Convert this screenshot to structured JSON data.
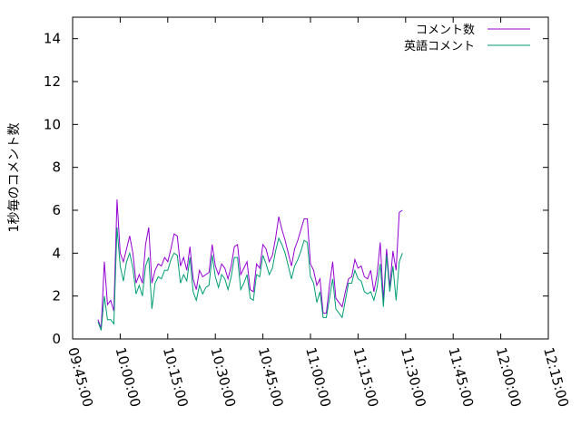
{
  "chart_data": {
    "type": "line",
    "title": "",
    "xlabel": "",
    "ylabel": "1秒毎のコメント数",
    "x_ticks": [
      "09:45:00",
      "10:00:00",
      "10:15:00",
      "10:30:00",
      "10:45:00",
      "11:00:00",
      "11:15:00",
      "11:30:00",
      "11:45:00",
      "12:00:00",
      "12:15:00"
    ],
    "y_ticks": [
      "0",
      "2",
      "4",
      "6",
      "8",
      "10",
      "12",
      "14"
    ],
    "ylim": [
      0,
      15
    ],
    "xlim": [
      "09:45:00",
      "12:15:00"
    ],
    "grid": false,
    "legend_position": "top-right",
    "series": [
      {
        "name": "コメント数",
        "color": "#9400d3",
        "points": [
          [
            "09:53:00",
            0.9
          ],
          [
            "09:54:00",
            0.5
          ],
          [
            "09:55:00",
            3.6
          ],
          [
            "09:56:00",
            1.6
          ],
          [
            "09:57:00",
            1.8
          ],
          [
            "09:58:00",
            1.3
          ],
          [
            "09:59:00",
            6.5
          ],
          [
            "10:00:00",
            4.0
          ],
          [
            "10:01:00",
            3.6
          ],
          [
            "10:02:00",
            4.2
          ],
          [
            "10:03:00",
            4.8
          ],
          [
            "10:04:00",
            4.0
          ],
          [
            "10:05:00",
            2.6
          ],
          [
            "10:06:00",
            3.0
          ],
          [
            "10:07:00",
            2.6
          ],
          [
            "10:08:00",
            4.4
          ],
          [
            "10:09:00",
            5.2
          ],
          [
            "10:10:00",
            2.6
          ],
          [
            "10:11:00",
            3.2
          ],
          [
            "10:12:00",
            3.5
          ],
          [
            "10:13:00",
            3.4
          ],
          [
            "10:14:00",
            3.8
          ],
          [
            "10:15:00",
            3.6
          ],
          [
            "10:16:00",
            4.2
          ],
          [
            "10:17:00",
            4.9
          ],
          [
            "10:18:00",
            4.8
          ],
          [
            "10:19:00",
            3.4
          ],
          [
            "10:20:00",
            3.8
          ],
          [
            "10:21:00",
            3.2
          ],
          [
            "10:22:00",
            4.3
          ],
          [
            "10:23:00",
            2.8
          ],
          [
            "10:24:00",
            2.3
          ],
          [
            "10:25:00",
            3.2
          ],
          [
            "10:26:00",
            2.9
          ],
          [
            "10:27:00",
            3.0
          ],
          [
            "10:28:00",
            3.1
          ],
          [
            "10:29:00",
            4.4
          ],
          [
            "10:30:00",
            3.4
          ],
          [
            "10:31:00",
            3.0
          ],
          [
            "10:32:00",
            3.5
          ],
          [
            "10:33:00",
            3.3
          ],
          [
            "10:34:00",
            2.8
          ],
          [
            "10:35:00",
            3.4
          ],
          [
            "10:36:00",
            4.3
          ],
          [
            "10:37:00",
            4.4
          ],
          [
            "10:38:00",
            3.0
          ],
          [
            "10:39:00",
            3.3
          ],
          [
            "10:40:00",
            3.6
          ],
          [
            "10:41:00",
            2.3
          ],
          [
            "10:42:00",
            2.2
          ],
          [
            "10:43:00",
            3.5
          ],
          [
            "10:44:00",
            3.3
          ],
          [
            "10:45:00",
            4.4
          ],
          [
            "10:46:00",
            4.2
          ],
          [
            "10:47:00",
            3.6
          ],
          [
            "10:48:00",
            3.9
          ],
          [
            "10:49:00",
            4.7
          ],
          [
            "10:50:00",
            5.7
          ],
          [
            "10:51:00",
            5.1
          ],
          [
            "10:52:00",
            4.6
          ],
          [
            "10:53:00",
            4.0
          ],
          [
            "10:54:00",
            3.4
          ],
          [
            "10:55:00",
            4.2
          ],
          [
            "10:56:00",
            4.6
          ],
          [
            "10:57:00",
            5.1
          ],
          [
            "10:58:00",
            5.6
          ],
          [
            "10:59:00",
            5.6
          ],
          [
            "11:00:00",
            3.5
          ],
          [
            "11:01:00",
            3.2
          ],
          [
            "11:02:00",
            2.5
          ],
          [
            "11:03:00",
            2.8
          ],
          [
            "11:04:00",
            1.2
          ],
          [
            "11:05:00",
            1.2
          ],
          [
            "11:06:00",
            2.5
          ],
          [
            "11:07:00",
            3.6
          ],
          [
            "11:08:00",
            1.9
          ],
          [
            "11:09:00",
            1.7
          ],
          [
            "11:10:00",
            1.5
          ],
          [
            "11:11:00",
            2.2
          ],
          [
            "11:12:00",
            2.8
          ],
          [
            "11:13:00",
            2.9
          ],
          [
            "11:14:00",
            3.7
          ],
          [
            "11:15:00",
            3.3
          ],
          [
            "11:16:00",
            3.4
          ],
          [
            "11:17:00",
            2.9
          ],
          [
            "11:18:00",
            2.8
          ],
          [
            "11:19:00",
            3.2
          ],
          [
            "11:20:00",
            2.2
          ],
          [
            "11:21:00",
            3.0
          ],
          [
            "11:22:00",
            4.5
          ],
          [
            "11:23:00",
            1.8
          ],
          [
            "11:24:00",
            4.2
          ],
          [
            "11:25:00",
            2.4
          ],
          [
            "11:26:00",
            4.1
          ],
          [
            "11:27:00",
            3.2
          ],
          [
            "11:28:00",
            5.9
          ],
          [
            "11:29:00",
            6.0
          ]
        ]
      },
      {
        "name": "英語コメント",
        "color": "#009e73",
        "points": [
          [
            "09:53:00",
            0.8
          ],
          [
            "09:54:00",
            0.4
          ],
          [
            "09:55:00",
            2.0
          ],
          [
            "09:56:00",
            0.9
          ],
          [
            "09:57:00",
            0.9
          ],
          [
            "09:58:00",
            0.7
          ],
          [
            "09:59:00",
            5.2
          ],
          [
            "10:00:00",
            3.4
          ],
          [
            "10:01:00",
            2.7
          ],
          [
            "10:02:00",
            3.6
          ],
          [
            "10:03:00",
            4.0
          ],
          [
            "10:04:00",
            3.3
          ],
          [
            "10:05:00",
            2.1
          ],
          [
            "10:06:00",
            2.5
          ],
          [
            "10:07:00",
            2.0
          ],
          [
            "10:08:00",
            3.4
          ],
          [
            "10:09:00",
            3.8
          ],
          [
            "10:10:00",
            1.4
          ],
          [
            "10:11:00",
            2.6
          ],
          [
            "10:12:00",
            2.9
          ],
          [
            "10:13:00",
            2.8
          ],
          [
            "10:14:00",
            3.2
          ],
          [
            "10:15:00",
            3.2
          ],
          [
            "10:16:00",
            3.7
          ],
          [
            "10:17:00",
            4.0
          ],
          [
            "10:18:00",
            3.9
          ],
          [
            "10:19:00",
            2.6
          ],
          [
            "10:20:00",
            3.0
          ],
          [
            "10:21:00",
            2.7
          ],
          [
            "10:22:00",
            3.8
          ],
          [
            "10:23:00",
            2.2
          ],
          [
            "10:24:00",
            1.8
          ],
          [
            "10:25:00",
            2.5
          ],
          [
            "10:26:00",
            2.1
          ],
          [
            "10:27:00",
            2.4
          ],
          [
            "10:28:00",
            2.5
          ],
          [
            "10:29:00",
            3.9
          ],
          [
            "10:30:00",
            2.9
          ],
          [
            "10:31:00",
            2.4
          ],
          [
            "10:32:00",
            3.0
          ],
          [
            "10:33:00",
            2.8
          ],
          [
            "10:34:00",
            2.3
          ],
          [
            "10:35:00",
            2.9
          ],
          [
            "10:36:00",
            3.8
          ],
          [
            "10:37:00",
            3.8
          ],
          [
            "10:38:00",
            2.3
          ],
          [
            "10:39:00",
            2.6
          ],
          [
            "10:40:00",
            3.0
          ],
          [
            "10:41:00",
            1.9
          ],
          [
            "10:42:00",
            1.8
          ],
          [
            "10:43:00",
            3.0
          ],
          [
            "10:44:00",
            2.9
          ],
          [
            "10:45:00",
            3.9
          ],
          [
            "10:46:00",
            3.5
          ],
          [
            "10:47:00",
            3.0
          ],
          [
            "10:48:00",
            3.3
          ],
          [
            "10:49:00",
            4.1
          ],
          [
            "10:50:00",
            4.7
          ],
          [
            "10:51:00",
            4.4
          ],
          [
            "10:52:00",
            4.0
          ],
          [
            "10:53:00",
            3.4
          ],
          [
            "10:54:00",
            2.8
          ],
          [
            "10:55:00",
            3.4
          ],
          [
            "10:56:00",
            3.7
          ],
          [
            "10:57:00",
            4.1
          ],
          [
            "10:58:00",
            4.6
          ],
          [
            "10:59:00",
            4.5
          ],
          [
            "11:00:00",
            2.9
          ],
          [
            "11:01:00",
            2.6
          ],
          [
            "11:02:00",
            1.7
          ],
          [
            "11:03:00",
            2.2
          ],
          [
            "11:04:00",
            1.0
          ],
          [
            "11:05:00",
            1.0
          ],
          [
            "11:06:00",
            1.9
          ],
          [
            "11:07:00",
            2.8
          ],
          [
            "11:08:00",
            1.4
          ],
          [
            "11:09:00",
            1.2
          ],
          [
            "11:10:00",
            1.0
          ],
          [
            "11:11:00",
            1.8
          ],
          [
            "11:12:00",
            2.6
          ],
          [
            "11:13:00",
            2.6
          ],
          [
            "11:14:00",
            3.2
          ],
          [
            "11:15:00",
            2.8
          ],
          [
            "11:16:00",
            2.7
          ],
          [
            "11:17:00",
            2.2
          ],
          [
            "11:18:00",
            2.1
          ],
          [
            "11:19:00",
            2.2
          ],
          [
            "11:20:00",
            1.8
          ],
          [
            "11:21:00",
            2.4
          ],
          [
            "11:22:00",
            3.5
          ],
          [
            "11:23:00",
            1.5
          ],
          [
            "11:24:00",
            3.9
          ],
          [
            "11:25:00",
            2.2
          ],
          [
            "11:26:00",
            3.4
          ],
          [
            "11:27:00",
            1.8
          ],
          [
            "11:28:00",
            3.6
          ],
          [
            "11:29:00",
            4.0
          ]
        ]
      }
    ]
  }
}
